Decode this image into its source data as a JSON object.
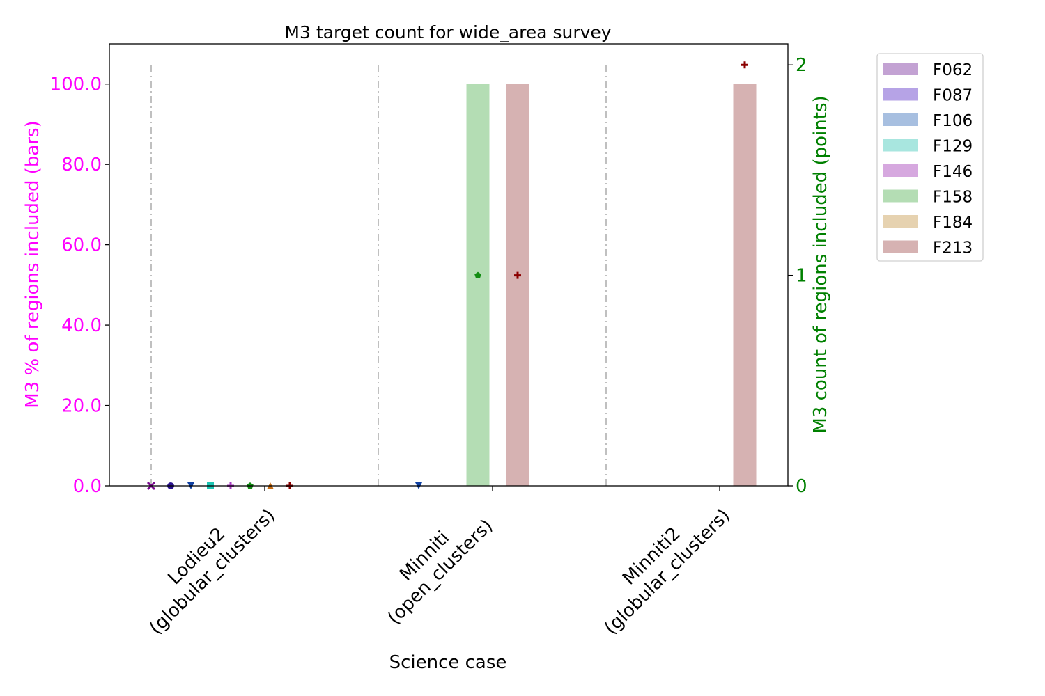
{
  "chart_data": {
    "type": "bar",
    "title": "M3 target count for wide_area survey",
    "xlabel": "Science case",
    "ylabel_left": "M3 % of regions included (bars)",
    "ylabel_right": "M3 count of regions included (points)",
    "categories": [
      "Lodieu2\n(globular_clusters)",
      "Minniti\n(open_clusters)",
      "Minniti2\n(globular_clusters)"
    ],
    "ylim_left": [
      0,
      110
    ],
    "ylim_right": [
      0,
      2.1
    ],
    "yticks_left": [
      "0.0",
      "20.0",
      "40.0",
      "60.0",
      "80.0",
      "100.0"
    ],
    "yticks_right": [
      "0",
      "1",
      "2"
    ],
    "legend_position": "outside-right",
    "series": [
      {
        "name": "F062",
        "color": "#c3a2d3",
        "marker": "x",
        "marker_color": "#7a0b8f",
        "bar_values": [
          0,
          0,
          0
        ],
        "point_values": [
          0,
          null,
          null
        ]
      },
      {
        "name": "F087",
        "color": "#b6a3e6",
        "marker": "circle",
        "marker_color": "#2a138f",
        "bar_values": [
          0,
          0,
          0
        ],
        "point_values": [
          0,
          null,
          null
        ]
      },
      {
        "name": "F106",
        "color": "#a7bfe0",
        "marker": "triangle-down",
        "marker_color": "#0f40a3",
        "bar_values": [
          0,
          0,
          0
        ],
        "point_values": [
          0,
          0,
          null
        ]
      },
      {
        "name": "F129",
        "color": "#a8e6df",
        "marker": "square",
        "marker_color": "#1bc4b3",
        "bar_values": [
          0,
          0,
          0
        ],
        "point_values": [
          0,
          null,
          null
        ]
      },
      {
        "name": "F146",
        "color": "#d6a8df",
        "marker": "plus",
        "marker_color": "#a83bc2",
        "bar_values": [
          0,
          0,
          0
        ],
        "point_values": [
          0,
          null,
          null
        ]
      },
      {
        "name": "F158",
        "color": "#b4ddb4",
        "marker": "pentagon",
        "marker_color": "#128c12",
        "bar_values": [
          0,
          100,
          0
        ],
        "point_values": [
          0,
          1,
          null
        ]
      },
      {
        "name": "F184",
        "color": "#e6d2b0",
        "marker": "triangle-up",
        "marker_color": "#c46a10",
        "bar_values": [
          0,
          0,
          0
        ],
        "point_values": [
          0,
          null,
          null
        ]
      },
      {
        "name": "F213",
        "color": "#d6b2b2",
        "marker": "plus",
        "marker_color": "#8b0000",
        "bar_values": [
          0,
          100,
          100
        ],
        "point_values": [
          0,
          1,
          2
        ]
      }
    ],
    "colors": {
      "left_axis": "#ff00ff",
      "right_axis": "#008000",
      "separator": "#c0c0c0"
    }
  }
}
